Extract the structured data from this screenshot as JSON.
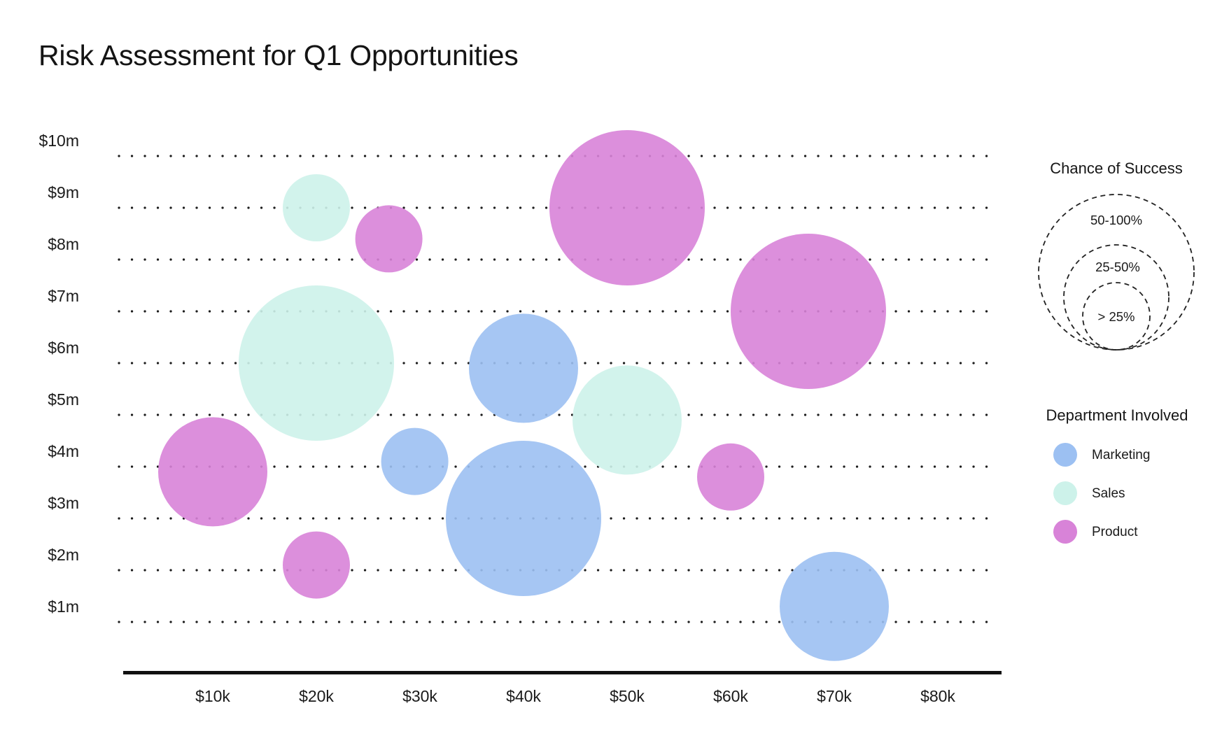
{
  "title": "Risk Assessment for Q1 Opportunities",
  "chart_data": {
    "type": "scatter",
    "subtype": "bubble",
    "title": "Risk Assessment for Q1 Opportunities",
    "grid": "dotted-horizontal",
    "x_axis": {
      "unit": "deal size ($k)",
      "range_k": [
        0,
        85
      ],
      "ticks": [
        {
          "label": "$10k",
          "value": 10
        },
        {
          "label": "$20k",
          "value": 20
        },
        {
          "label": "$30k",
          "value": 30
        },
        {
          "label": "$40k",
          "value": 40
        },
        {
          "label": "$50k",
          "value": 50
        },
        {
          "label": "$60k",
          "value": 60
        },
        {
          "label": "$70k",
          "value": 70
        },
        {
          "label": "$80k",
          "value": 80
        }
      ]
    },
    "y_axis": {
      "unit": "opportunity value ($m)",
      "range_m": [
        0,
        10.5
      ],
      "ticks": [
        {
          "label": "$10m",
          "value": 10
        },
        {
          "label": "$9m",
          "value": 9
        },
        {
          "label": "$8m",
          "value": 8
        },
        {
          "label": "$7m",
          "value": 7
        },
        {
          "label": "$6m",
          "value": 6
        },
        {
          "label": "$5m",
          "value": 5
        },
        {
          "label": "$4m",
          "value": 4
        },
        {
          "label": "$3m",
          "value": 3
        },
        {
          "label": "$2m",
          "value": 2
        },
        {
          "label": "$1m",
          "value": 1
        }
      ]
    },
    "size_legend": {
      "title": "Chance of Success",
      "entries": [
        {
          "label": "50-100%",
          "size": "large"
        },
        {
          "label": "25-50%",
          "size": "medium"
        },
        {
          "label": "> 25%",
          "size": "small"
        }
      ]
    },
    "color_legend": {
      "title": "Department Involved",
      "entries": [
        {
          "label": "Marketing",
          "color": "#9cc0f2"
        },
        {
          "label": "Sales",
          "color": "#cdf2ea"
        },
        {
          "label": "Product",
          "color": "#d883d8"
        }
      ]
    },
    "points": [
      {
        "department": "Sales",
        "deal_size_k": 20,
        "value_m": 9.0,
        "chance": "> 25%"
      },
      {
        "department": "Product",
        "deal_size_k": 27,
        "value_m": 8.4,
        "chance": "> 25%"
      },
      {
        "department": "Product",
        "deal_size_k": 50,
        "value_m": 9.0,
        "chance": "50-100%"
      },
      {
        "department": "Sales",
        "deal_size_k": 20,
        "value_m": 6.0,
        "chance": "50-100%"
      },
      {
        "department": "Marketing",
        "deal_size_k": 40,
        "value_m": 5.9,
        "chance": "25-50%"
      },
      {
        "department": "Sales",
        "deal_size_k": 50,
        "value_m": 4.9,
        "chance": "25-50%"
      },
      {
        "department": "Product",
        "deal_size_k": 67.5,
        "value_m": 7.0,
        "chance": "50-100%"
      },
      {
        "department": "Product",
        "deal_size_k": 10,
        "value_m": 3.9,
        "chance": "25-50%"
      },
      {
        "department": "Marketing",
        "deal_size_k": 29.5,
        "value_m": 4.1,
        "chance": "> 25%"
      },
      {
        "department": "Marketing",
        "deal_size_k": 40,
        "value_m": 3.0,
        "chance": "50-100%"
      },
      {
        "department": "Product",
        "deal_size_k": 20,
        "value_m": 2.1,
        "chance": "> 25%"
      },
      {
        "department": "Product",
        "deal_size_k": 60,
        "value_m": 3.8,
        "chance": "> 25%"
      },
      {
        "department": "Marketing",
        "deal_size_k": 70,
        "value_m": 1.3,
        "chance": "25-50%"
      }
    ]
  }
}
